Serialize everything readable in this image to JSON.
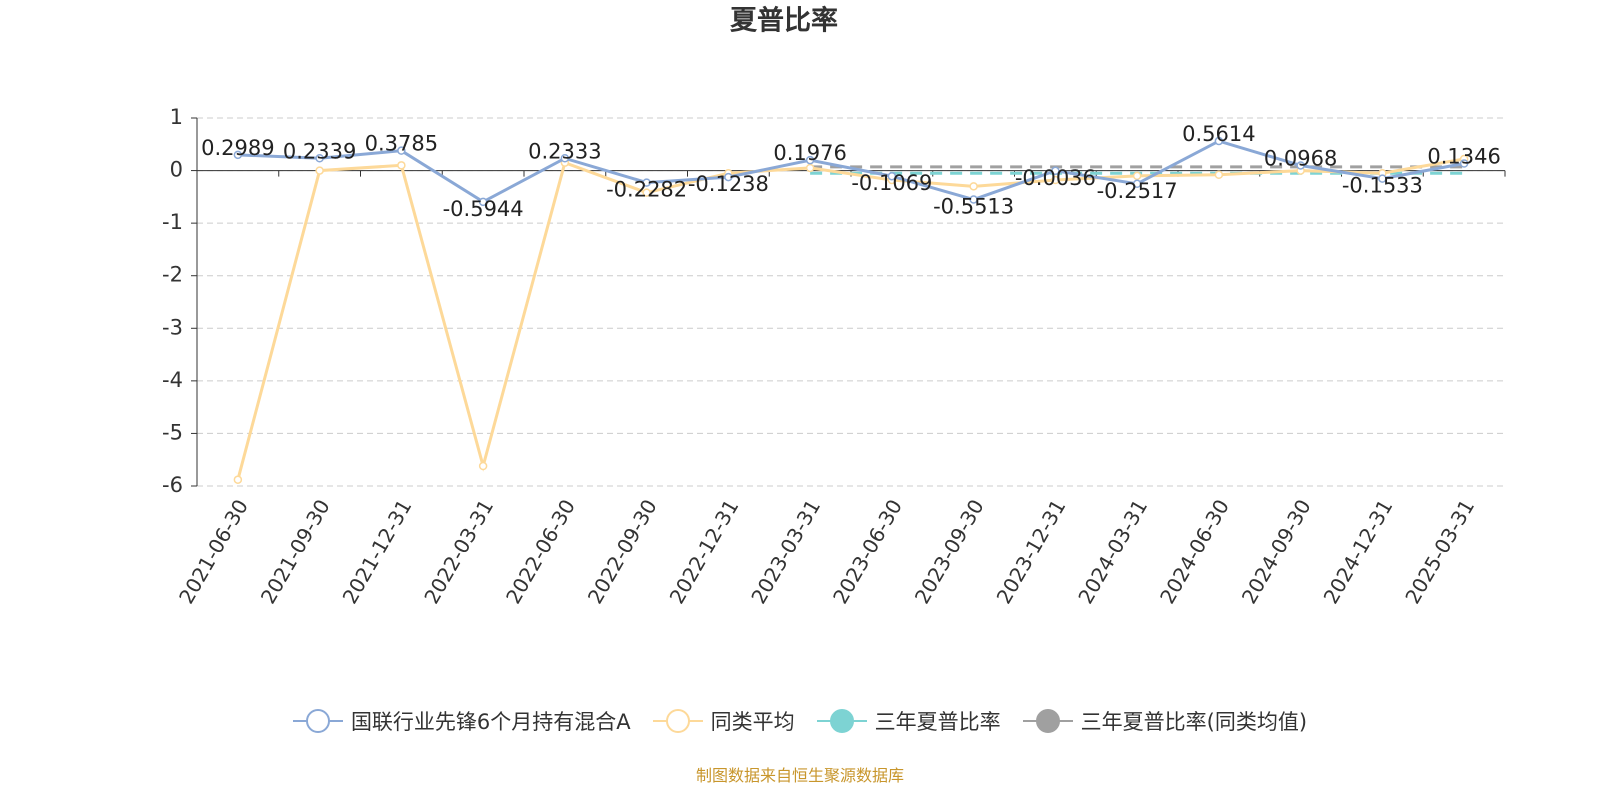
{
  "chart_data": {
    "type": "line",
    "title": "夏普比率",
    "categories": [
      "2021-06-30",
      "2021-09-30",
      "2021-12-31",
      "2022-03-31",
      "2022-06-30",
      "2022-09-30",
      "2022-12-31",
      "2023-03-31",
      "2023-06-30",
      "2023-09-30",
      "2023-12-31",
      "2024-03-31",
      "2024-06-30",
      "2024-09-30",
      "2024-12-31",
      "2025-03-31"
    ],
    "series": [
      {
        "name": "国联行业先锋6个月持有混合A",
        "color": "#8aa8d6",
        "symbol": "emptyCircle",
        "dashed": false,
        "labels": true,
        "values": [
          0.2989,
          0.2339,
          0.3785,
          -0.5944,
          0.2333,
          -0.2282,
          -0.1238,
          0.1976,
          -0.1069,
          -0.5513,
          -0.0036,
          -0.2517,
          0.5614,
          0.0968,
          -0.1533,
          0.1346
        ]
      },
      {
        "name": "同类平均",
        "color": "#fdd999",
        "symbol": "emptyCircle",
        "dashed": false,
        "labels": false,
        "values": [
          -5.88,
          0.0,
          0.1,
          -5.62,
          0.15,
          -0.42,
          -0.05,
          0.05,
          -0.18,
          -0.3,
          -0.18,
          -0.1,
          -0.08,
          0.0,
          -0.05,
          0.22
        ]
      },
      {
        "name": "三年夏普比率",
        "color": "#7dd3d3",
        "symbol": "circle",
        "dashed": true,
        "labels": false,
        "values": [
          null,
          null,
          null,
          null,
          null,
          null,
          null,
          -0.05,
          -0.05,
          -0.05,
          -0.05,
          -0.05,
          -0.05,
          -0.05,
          -0.05,
          -0.05
        ]
      },
      {
        "name": "三年夏普比率(同类均值)",
        "color": "#a0a0a0",
        "symbol": "circle",
        "dashed": true,
        "labels": false,
        "values": [
          null,
          null,
          null,
          null,
          null,
          null,
          null,
          0.07,
          0.07,
          0.07,
          0.07,
          0.07,
          0.07,
          0.07,
          0.07,
          0.07
        ]
      }
    ],
    "ylim": [
      -6,
      1
    ],
    "yticks": [
      -6,
      -5,
      -4,
      -3,
      -2,
      -1,
      0,
      1
    ],
    "grid": true,
    "source": "制图数据来自恒生聚源数据库"
  }
}
